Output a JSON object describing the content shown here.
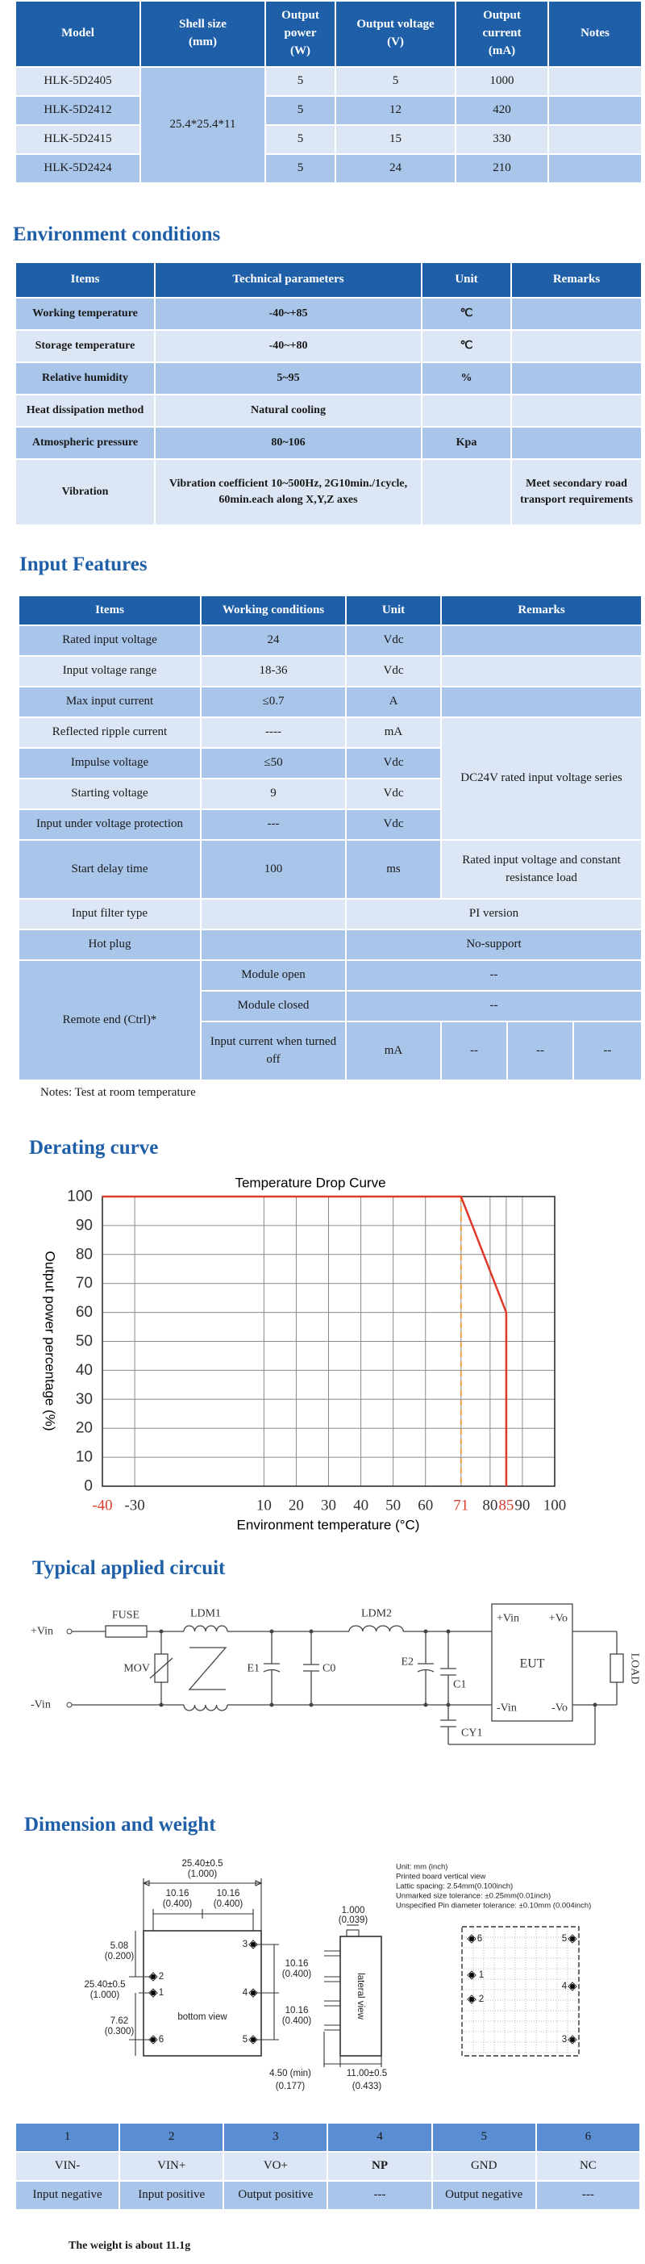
{
  "spec_table": {
    "header": [
      "Model",
      "Shell size (mm)",
      "Output power (W)",
      "Output voltage (V)",
      "Output current (mA)",
      "Notes"
    ],
    "rows": [
      [
        "HLK-5D2405",
        "25.4*25.4*11",
        "5",
        "5",
        "1000"
      ],
      [
        "HLK-5D2412",
        "5",
        "12",
        "420"
      ],
      [
        "HLK-5D2415",
        "5",
        "15",
        "330"
      ],
      [
        "HLK-5D2424",
        "5",
        "24",
        "210"
      ]
    ]
  },
  "environment": {
    "title": "Environment conditions",
    "header": [
      "Items",
      "Technical parameters",
      "Unit",
      "Remarks"
    ],
    "rows": [
      [
        "Working temperature",
        "-40~+85",
        "℃"
      ],
      [
        "Storage temperature",
        "-40~+80",
        "℃"
      ],
      [
        "Relative humidity",
        "5~95",
        "%"
      ],
      [
        "Heat dissipation method",
        "Natural cooling"
      ],
      [
        "Atmospheric pressure",
        "80~106",
        "Kpa"
      ],
      [
        "Vibration",
        "Vibration coefficient 10~500Hz, 2G10min./1cycle, 60min.each along X,Y,Z axes",
        "Meet secondary road transport requirements"
      ]
    ]
  },
  "input_features": {
    "title": "Input Features",
    "header": [
      "Items",
      "Working conditions",
      "Unit",
      "Remarks"
    ],
    "rows": [
      [
        "Rated input voltage",
        "24",
        "Vdc"
      ],
      [
        "Input voltage range",
        "18-36",
        "Vdc"
      ],
      [
        "Max input current",
        "≤0.7",
        "A"
      ],
      [
        "Reflected ripple current",
        "----",
        "mA",
        "DC24V rated input voltage series"
      ],
      [
        "Impulse voltage",
        "≤50",
        "Vdc"
      ],
      [
        "Starting voltage",
        "9",
        "Vdc"
      ],
      [
        "Input under voltage protection",
        "---",
        "Vdc"
      ],
      [
        "Start delay time",
        "100",
        "ms",
        "Rated input voltage and constant resistance load"
      ],
      [
        "Input filter type",
        "PI version"
      ],
      [
        "Hot plug",
        "No-support"
      ],
      [
        "Remote end (Ctrl)*",
        "Module open",
        "--"
      ],
      [
        "Module closed",
        "--"
      ],
      [
        "Input current when turned off",
        "mA",
        "--",
        "--",
        "--"
      ]
    ],
    "note": "Notes: Test at room temperature"
  },
  "derating": {
    "title": "Derating curve"
  },
  "chart_data": {
    "type": "line",
    "title": "Temperature Drop Curve",
    "x_label": "Environment temperature (°C)",
    "y_label": "Output power percentage (%)",
    "x": [
      -40,
      71,
      85,
      85
    ],
    "series": [
      {
        "color": "#e0392b",
        "values": [
          100,
          100,
          60,
          0
        ]
      }
    ],
    "xlim": [
      -40,
      100
    ],
    "ylim": [
      0,
      100
    ],
    "xticks": [
      -40,
      -30,
      10,
      20,
      30,
      40,
      50,
      60,
      71,
      80,
      85,
      90,
      100
    ],
    "xtick_colors": [
      "#d9402f",
      "#333333",
      "#333333",
      "#333333",
      "#333333",
      "#333333",
      "#333333",
      "#333333",
      "#d9402f",
      "#333333",
      "#d9402f",
      "#333333",
      "#333333"
    ],
    "yticks": [
      0,
      10,
      20,
      30,
      40,
      50,
      60,
      70,
      80,
      90,
      100
    ],
    "grid": true,
    "reference_line": {
      "x": 71,
      "color": "#f0a04b",
      "style": "dashed"
    }
  },
  "circuit": {
    "title": "Typical applied circuit",
    "labels": {
      "vin_pos": "+Vin",
      "vin_neg": "-Vin",
      "fuse": "FUSE",
      "ldm1": "LDM1",
      "ldm2": "LDM2",
      "mov": "MOV",
      "e1": "E1",
      "c0": "C0",
      "e2": "E2",
      "c1": "C1",
      "cy1": "CY1",
      "eut": "EUT",
      "eut_vin_pos": "+Vin",
      "eut_vo_pos": "+Vo",
      "eut_vin_neg": "-Vin",
      "eut_vo_neg": "-Vo",
      "load": "LOAD"
    }
  },
  "dimension": {
    "title": "Dimension and weight",
    "labels": {
      "width": "25.40±0.5",
      "width_inch": "(1.000)",
      "pitch_left": "10.16",
      "pitch_left_inch": "(0.400)",
      "pitch_right": "10.16",
      "pitch_right_inch": "(0.400)",
      "top_offset": "5.08",
      "top_offset_inch": "(0.200)",
      "height": "25.40±0.5",
      "height_inch": "(1.000)",
      "bottom_offset": "7.62",
      "bottom_offset_inch": "(0.300)",
      "right_upper": "10.16",
      "right_upper_inch": "(0.400)",
      "right_lower": "10.16",
      "right_lower_inch": "(0.400)",
      "bottom_view": "bottom view",
      "lateral_view": "lateral view",
      "tab": "1.000",
      "tab_inch": "(0.039)",
      "pin_length": "4.50 (min)",
      "pin_length_inch": "(0.177)",
      "thickness": "11.00±0.5",
      "thickness_inch": "(0.433)"
    },
    "bottom_pins": [
      "3",
      "2",
      "1",
      "4",
      "6",
      "5"
    ],
    "notes": [
      "Unit: mm (inch)",
      "Printed board vertical view",
      "Lattic spacing: 2.54mm(0.100inch)",
      "Unmarked size tolerance: ±0.25mm(0.01inch)",
      "Unspecified Pin diameter tolerance: ±0.10mm (0.004inch)"
    ],
    "board_pins": [
      "6",
      "5",
      "1",
      "4",
      "2",
      "3"
    ],
    "pin_table": {
      "numbers": [
        "1",
        "2",
        "3",
        "4",
        "5",
        "6"
      ],
      "names": [
        "VIN-",
        "VIN+",
        "VO+",
        "NP",
        "GND",
        "NC"
      ],
      "functions": [
        "Input negative",
        "Input positive",
        "Output positive",
        "---",
        "Output negative",
        "---"
      ]
    },
    "weight": "The weight is about 11.1g"
  }
}
